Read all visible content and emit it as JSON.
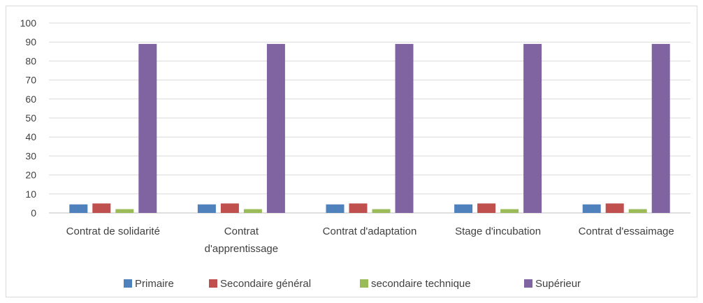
{
  "chart_data": {
    "type": "bar",
    "categories": [
      [
        "Contrat de solidarité"
      ],
      [
        "Contrat",
        "d'apprentissage"
      ],
      [
        "Contrat d'adaptation"
      ],
      [
        "Stage d'incubation"
      ],
      [
        "Contrat d'essaimage"
      ]
    ],
    "series": [
      {
        "name": "Primaire",
        "color": "#4f81bd",
        "values": [
          4.5,
          4.5,
          4.5,
          4.5,
          4.5
        ]
      },
      {
        "name": "Secondaire général",
        "color": "#c0504d",
        "values": [
          5,
          5,
          5,
          5,
          5
        ]
      },
      {
        "name": "secondaire technique",
        "color": "#9bbb59",
        "values": [
          2,
          2,
          2,
          2,
          2
        ]
      },
      {
        "name": "Supérieur",
        "color": "#8064a2",
        "values": [
          89,
          89,
          89,
          89,
          89
        ]
      }
    ],
    "y_ticks": [
      "0",
      "10",
      "20",
      "30",
      "40",
      "50",
      "60",
      "70",
      "80",
      "90",
      "100"
    ],
    "ylim": [
      0,
      100
    ],
    "grid": true,
    "legend_position": "bottom",
    "title": "",
    "xlabel": "",
    "ylabel": ""
  }
}
